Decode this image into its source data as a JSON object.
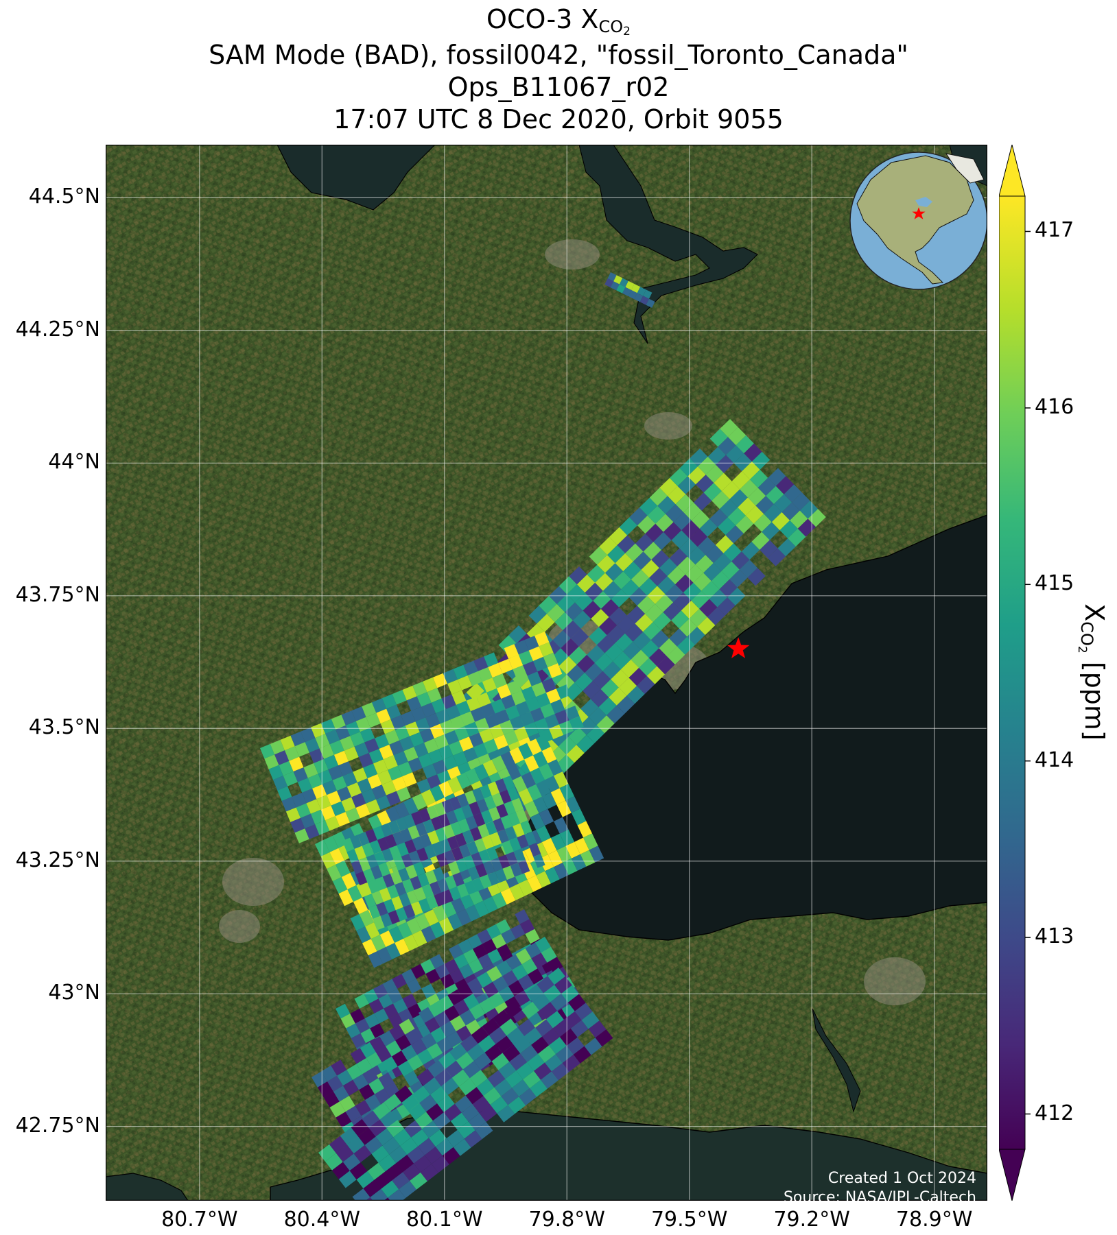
{
  "title": {
    "line1_prefix": "OCO-3 X",
    "line1_sub": "CO",
    "line1_subsub": "2",
    "line2": "SAM Mode (BAD), fossil0042, \"fossil_Toronto_Canada\"",
    "line3": "Ops_B11067_r02",
    "line4": "17:07 UTC 8 Dec 2020, Orbit 9055"
  },
  "map": {
    "lon_range": [
      -80.93,
      -78.77
    ],
    "lat_range": [
      42.61,
      44.6
    ],
    "lat_ticks": [
      {
        "value": 44.5,
        "label": "44.5°N"
      },
      {
        "value": 44.25,
        "label": "44.25°N"
      },
      {
        "value": 44.0,
        "label": "44°N"
      },
      {
        "value": 43.75,
        "label": "43.75°N"
      },
      {
        "value": 43.5,
        "label": "43.5°N"
      },
      {
        "value": 43.25,
        "label": "43.25°N"
      },
      {
        "value": 43.0,
        "label": "43°N"
      },
      {
        "value": 42.75,
        "label": "42.75°N"
      }
    ],
    "lon_ticks": [
      {
        "value": -80.7,
        "label": "80.7°W"
      },
      {
        "value": -80.4,
        "label": "80.4°W"
      },
      {
        "value": -80.1,
        "label": "80.1°W"
      },
      {
        "value": -79.8,
        "label": "79.8°W"
      },
      {
        "value": -79.5,
        "label": "79.5°W"
      },
      {
        "value": -79.2,
        "label": "79.2°W"
      },
      {
        "value": -78.9,
        "label": "78.9°W"
      }
    ],
    "target_star": {
      "lon": -79.38,
      "lat": 43.65,
      "color": "#ff0000"
    },
    "gridlines": true,
    "basemap": "satellite imagery",
    "inset": {
      "type": "globe",
      "region": "North America",
      "star_color": "#ff0000",
      "placement": "top-right"
    }
  },
  "colorbar": {
    "min": 411.8,
    "max": 417.2,
    "ticks": [
      "412",
      "413",
      "414",
      "415",
      "416",
      "417"
    ],
    "label_prefix": "X",
    "label_sub": "CO",
    "label_subsub": "2",
    "label_suffix": " [ppm]",
    "colormap": "viridis",
    "extend": "both"
  },
  "credits": {
    "created": "Created 1 Oct 2024",
    "source": "Source: NASA/JPL-Caltech"
  },
  "colors": {
    "land": "#3c5326",
    "water": "#0f1a1c",
    "viridis_low": "#440154",
    "viridis_mid": "#21918c",
    "viridis_high": "#fde725"
  }
}
